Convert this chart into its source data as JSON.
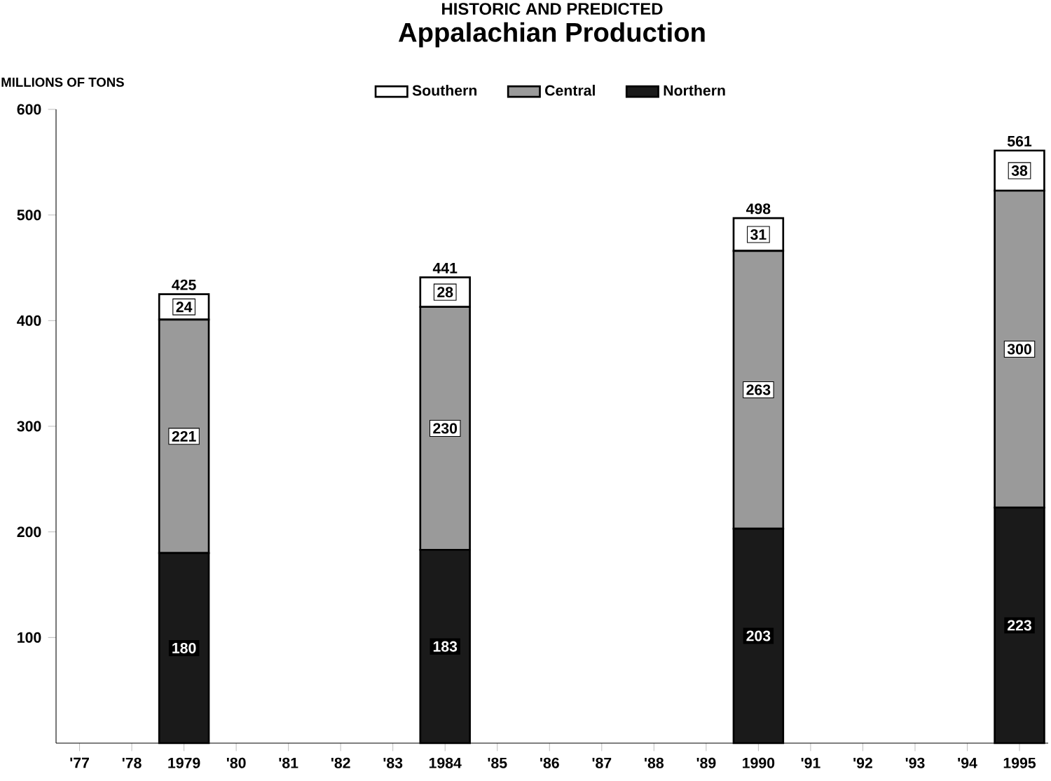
{
  "chart_data": {
    "type": "bar",
    "title": "Appalachian Production",
    "subtitle": "HISTORIC AND PREDICTED",
    "ylabel": "MILLIONS OF TONS",
    "categories": [
      "'77",
      "'78",
      "1979",
      "'80",
      "'81",
      "'82",
      "'83",
      "1984",
      "'85",
      "'86",
      "'87",
      "'88",
      "'89",
      "1990",
      "'91",
      "'92",
      "'93",
      "'94",
      "1995"
    ],
    "stacked": true,
    "legend": "top",
    "series": [
      {
        "name": "Northern",
        "color": "#1a1a1a",
        "values": [
          null,
          null,
          180,
          null,
          null,
          null,
          null,
          183,
          null,
          null,
          null,
          null,
          null,
          203,
          null,
          null,
          null,
          null,
          223
        ],
        "value_labels": [
          null,
          null,
          "180",
          null,
          null,
          null,
          null,
          "183",
          null,
          null,
          null,
          null,
          null,
          "203",
          null,
          null,
          null,
          null,
          "223"
        ]
      },
      {
        "name": "Central",
        "color": "#9a9a9a",
        "values": [
          null,
          null,
          221,
          null,
          null,
          null,
          null,
          230,
          null,
          null,
          null,
          null,
          null,
          263,
          null,
          null,
          null,
          null,
          300
        ],
        "value_labels": [
          null,
          null,
          "221",
          null,
          null,
          null,
          null,
          "230",
          null,
          null,
          null,
          null,
          null,
          "263",
          null,
          null,
          null,
          null,
          "300"
        ]
      },
      {
        "name": "Southern",
        "color": "#ffffff",
        "values": [
          null,
          null,
          24,
          null,
          null,
          null,
          null,
          28,
          null,
          null,
          null,
          null,
          null,
          31,
          null,
          null,
          null,
          null,
          38
        ],
        "value_labels": [
          null,
          null,
          "24",
          null,
          null,
          null,
          null,
          "28",
          null,
          null,
          null,
          null,
          null,
          "31",
          null,
          null,
          null,
          null,
          "38"
        ]
      }
    ],
    "totals": [
      null,
      null,
      "425",
      null,
      null,
      null,
      null,
      "441",
      null,
      null,
      null,
      null,
      null,
      "498",
      null,
      null,
      null,
      null,
      "561"
    ],
    "ylim": [
      0,
      600
    ],
    "yticks": [
      100,
      200,
      300,
      400,
      500,
      600
    ]
  }
}
